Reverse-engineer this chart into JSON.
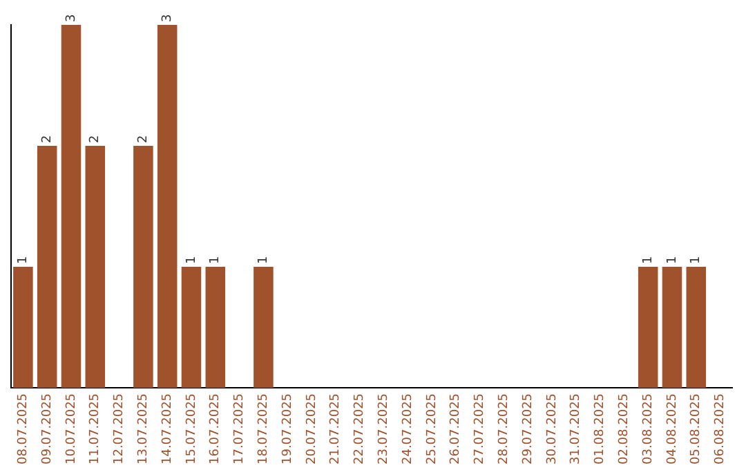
{
  "chart_data": {
    "type": "bar",
    "categories": [
      "08.07.2025",
      "09.07.2025",
      "10.07.2025",
      "11.07.2025",
      "12.07.2025",
      "13.07.2025",
      "14.07.2025",
      "15.07.2025",
      "16.07.2025",
      "17.07.2025",
      "18.07.2025",
      "19.07.2025",
      "20.07.2025",
      "21.07.2025",
      "22.07.2025",
      "23.07.2025",
      "24.07.2025",
      "25.07.2025",
      "26.07.2025",
      "27.07.2025",
      "28.07.2025",
      "29.07.2025",
      "30.07.2025",
      "31.07.2025",
      "01.08.2025",
      "02.08.2025",
      "03.08.2025",
      "04.08.2025",
      "05.08.2025",
      "06.08.2025"
    ],
    "values": [
      1,
      2,
      3,
      2,
      0,
      2,
      3,
      1,
      1,
      0,
      1,
      0,
      0,
      0,
      0,
      0,
      0,
      0,
      0,
      0,
      0,
      0,
      0,
      0,
      0,
      0,
      1,
      1,
      1,
      0
    ],
    "value_labels": [
      "1",
      "2",
      "3",
      "2",
      null,
      "2",
      "3",
      "1",
      "1",
      null,
      "1",
      null,
      null,
      null,
      null,
      null,
      null,
      null,
      null,
      null,
      null,
      null,
      null,
      null,
      null,
      null,
      "1",
      "1",
      "1",
      null
    ],
    "color": "#a0522d",
    "ylim": [
      0,
      3
    ],
    "tick_labels": "x",
    "grid": false,
    "legend": false
  }
}
